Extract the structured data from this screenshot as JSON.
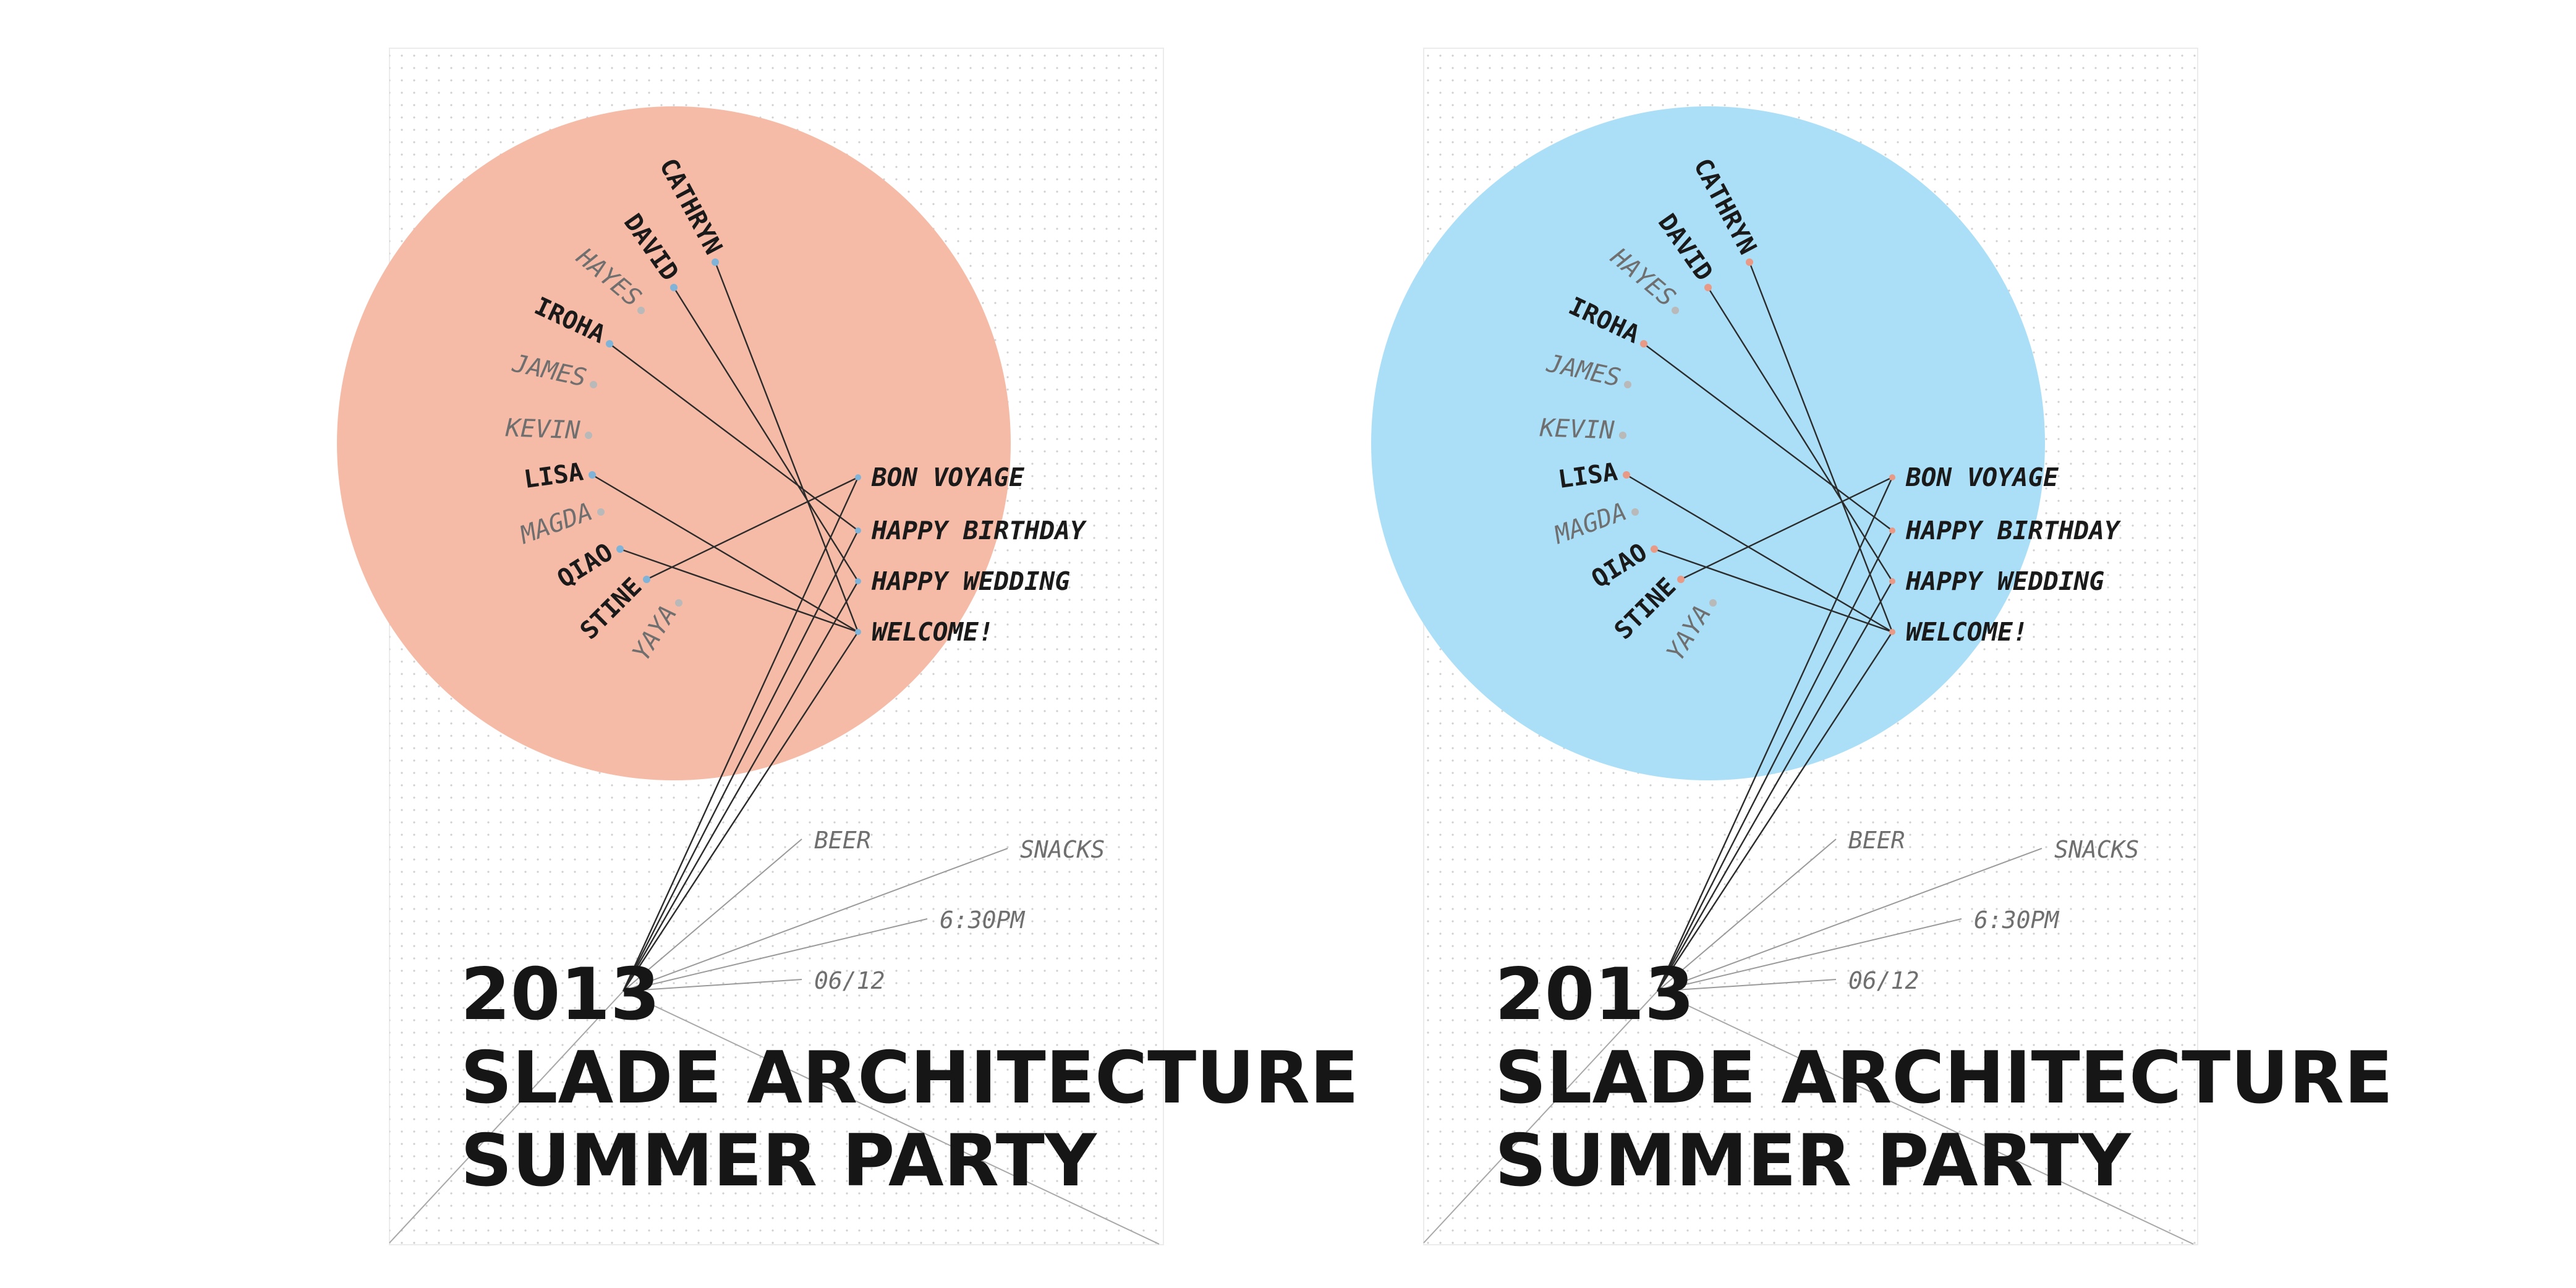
{
  "posters": [
    {
      "id": "orange",
      "circle_color": "#f6bba6",
      "dot_color": "#7fb4d8",
      "names": [
        {
          "text": "CATHRYN",
          "strong": true,
          "linked": true
        },
        {
          "text": "DAVID",
          "strong": true,
          "linked": true
        },
        {
          "text": "HAYES",
          "strong": false,
          "linked": false
        },
        {
          "text": "IROHA",
          "strong": true,
          "linked": true
        },
        {
          "text": "JAMES",
          "strong": false,
          "linked": false
        },
        {
          "text": "KEVIN",
          "strong": false,
          "linked": false
        },
        {
          "text": "LISA",
          "strong": true,
          "linked": true
        },
        {
          "text": "MAGDA",
          "strong": false,
          "linked": false
        },
        {
          "text": "QIAO",
          "strong": true,
          "linked": true
        },
        {
          "text": "STINE",
          "strong": true,
          "linked": true
        },
        {
          "text": "YAYA",
          "strong": false,
          "linked": false
        }
      ],
      "messages": [
        "BON VOYAGE",
        "HAPPY BIRTHDAY",
        "HAPPY WEDDING",
        "WELCOME!"
      ],
      "info": [
        "BEER",
        "SNACKS",
        "6:30PM",
        "06/12"
      ],
      "title_lines": [
        "2013",
        "SLADE ARCHITECTURE",
        "SUMMER PARTY"
      ]
    },
    {
      "id": "blue",
      "circle_color": "#aadff7",
      "dot_color": "#e89a86",
      "names": [
        {
          "text": "CATHRYN",
          "strong": true,
          "linked": true
        },
        {
          "text": "DAVID",
          "strong": true,
          "linked": true
        },
        {
          "text": "HAYES",
          "strong": false,
          "linked": false
        },
        {
          "text": "IROHA",
          "strong": true,
          "linked": true
        },
        {
          "text": "JAMES",
          "strong": false,
          "linked": false
        },
        {
          "text": "KEVIN",
          "strong": false,
          "linked": false
        },
        {
          "text": "LISA",
          "strong": true,
          "linked": true
        },
        {
          "text": "MAGDA",
          "strong": false,
          "linked": false
        },
        {
          "text": "QIAO",
          "strong": true,
          "linked": true
        },
        {
          "text": "STINE",
          "strong": true,
          "linked": true
        },
        {
          "text": "YAYA",
          "strong": false,
          "linked": false
        }
      ],
      "messages": [
        "BON VOYAGE",
        "HAPPY BIRTHDAY",
        "HAPPY WEDDING",
        "WELCOME!"
      ],
      "info": [
        "BEER",
        "SNACKS",
        "6:30PM",
        "06/12"
      ],
      "title_lines": [
        "2013",
        "SLADE ARCHITECTURE",
        "SUMMER PARTY"
      ]
    }
  ],
  "connections": [
    {
      "from": "CATHRYN",
      "to": "WELCOME!"
    },
    {
      "from": "DAVID",
      "to": "HAPPY WEDDING"
    },
    {
      "from": "IROHA",
      "to": "HAPPY BIRTHDAY"
    },
    {
      "from": "LISA",
      "to": "WELCOME!"
    },
    {
      "from": "QIAO",
      "to": "WELCOME!"
    },
    {
      "from": "STINE",
      "to": "BON VOYAGE"
    }
  ]
}
